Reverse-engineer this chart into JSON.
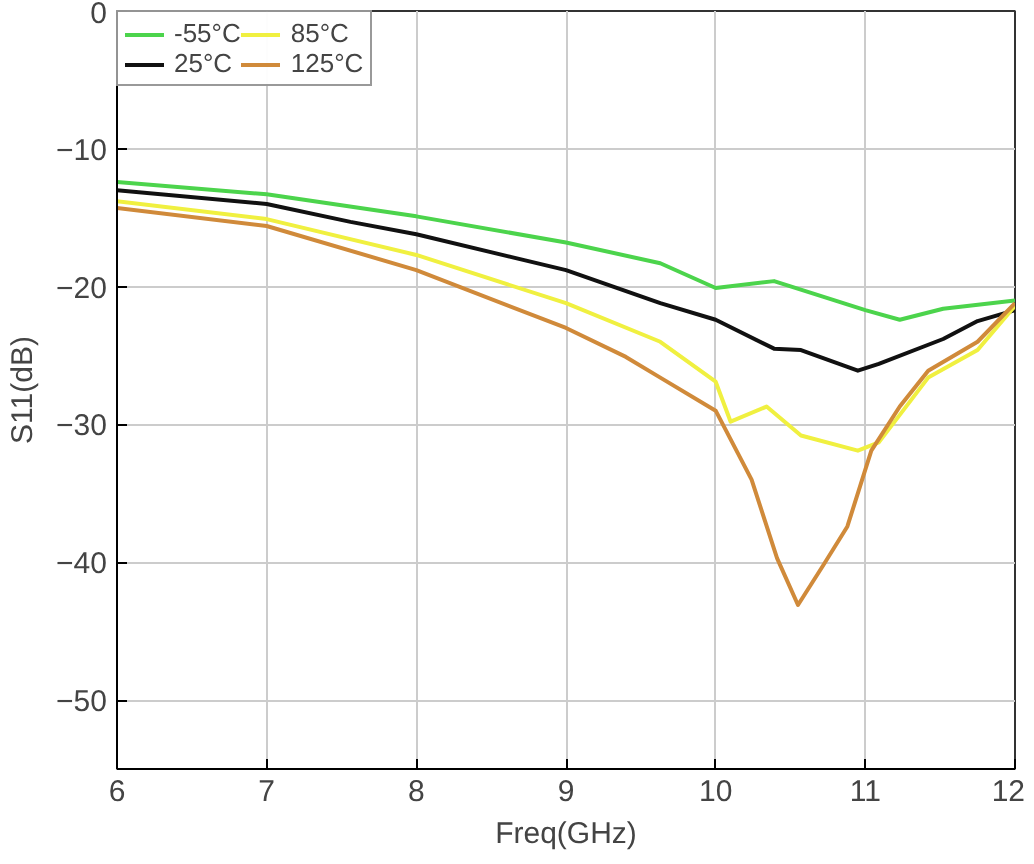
{
  "chart_data": {
    "type": "line",
    "xlabel": "Freq(GHz)",
    "ylabel": "S11(dB)",
    "xlim": [
      6,
      12
    ],
    "ylim": [
      -55,
      0
    ],
    "xticks": [
      6,
      7,
      8,
      9,
      10,
      11,
      12
    ],
    "yticks": [
      0,
      -10,
      -20,
      -30,
      -40,
      -50
    ],
    "grid": true,
    "legend": "top left",
    "line_style": "solid",
    "series": [
      {
        "name": "-55°C",
        "color": "#4cd44c",
        "x": [
          6,
          7,
          8,
          9,
          9.63,
          10,
          10.39,
          11,
          11.23,
          11.52,
          12
        ],
        "values": [
          -12.4,
          -13.3,
          -14.9,
          -16.8,
          -18.3,
          -20.1,
          -19.6,
          -21.7,
          -22.4,
          -21.6,
          -21.0
        ]
      },
      {
        "name": "25°C",
        "color": "#111111",
        "x": [
          6,
          7,
          7.56,
          8,
          9,
          9.63,
          10,
          10.39,
          10.57,
          10.95,
          11.09,
          11.52,
          11.75,
          12
        ],
        "values": [
          -13.0,
          -14.0,
          -15.3,
          -16.2,
          -18.8,
          -21.2,
          -22.4,
          -24.5,
          -24.6,
          -26.1,
          -25.6,
          -23.8,
          -22.5,
          -21.7
        ]
      },
      {
        "name": "85°C",
        "color": "#f0f040",
        "x": [
          6,
          7,
          8,
          9,
          9.63,
          10,
          10.1,
          10.34,
          10.57,
          10.95,
          11.09,
          11.42,
          11.75,
          12
        ],
        "values": [
          -13.8,
          -15.1,
          -17.7,
          -21.2,
          -24.0,
          -26.9,
          -29.8,
          -28.7,
          -30.8,
          -31.9,
          -31.3,
          -26.6,
          -24.6,
          -21.4
        ]
      },
      {
        "name": "125°C",
        "color": "#d08a3a",
        "x": [
          6,
          7,
          8,
          9,
          9.4,
          9.63,
          10,
          10.24,
          10.41,
          10.55,
          10.72,
          10.88,
          11.04,
          11.23,
          11.42,
          11.75,
          12
        ],
        "values": [
          -14.3,
          -15.6,
          -18.8,
          -23.0,
          -25.1,
          -26.6,
          -29.0,
          -34.0,
          -39.7,
          -43.1,
          -40.2,
          -37.4,
          -31.9,
          -28.7,
          -26.1,
          -24.0,
          -21.2
        ]
      }
    ]
  }
}
